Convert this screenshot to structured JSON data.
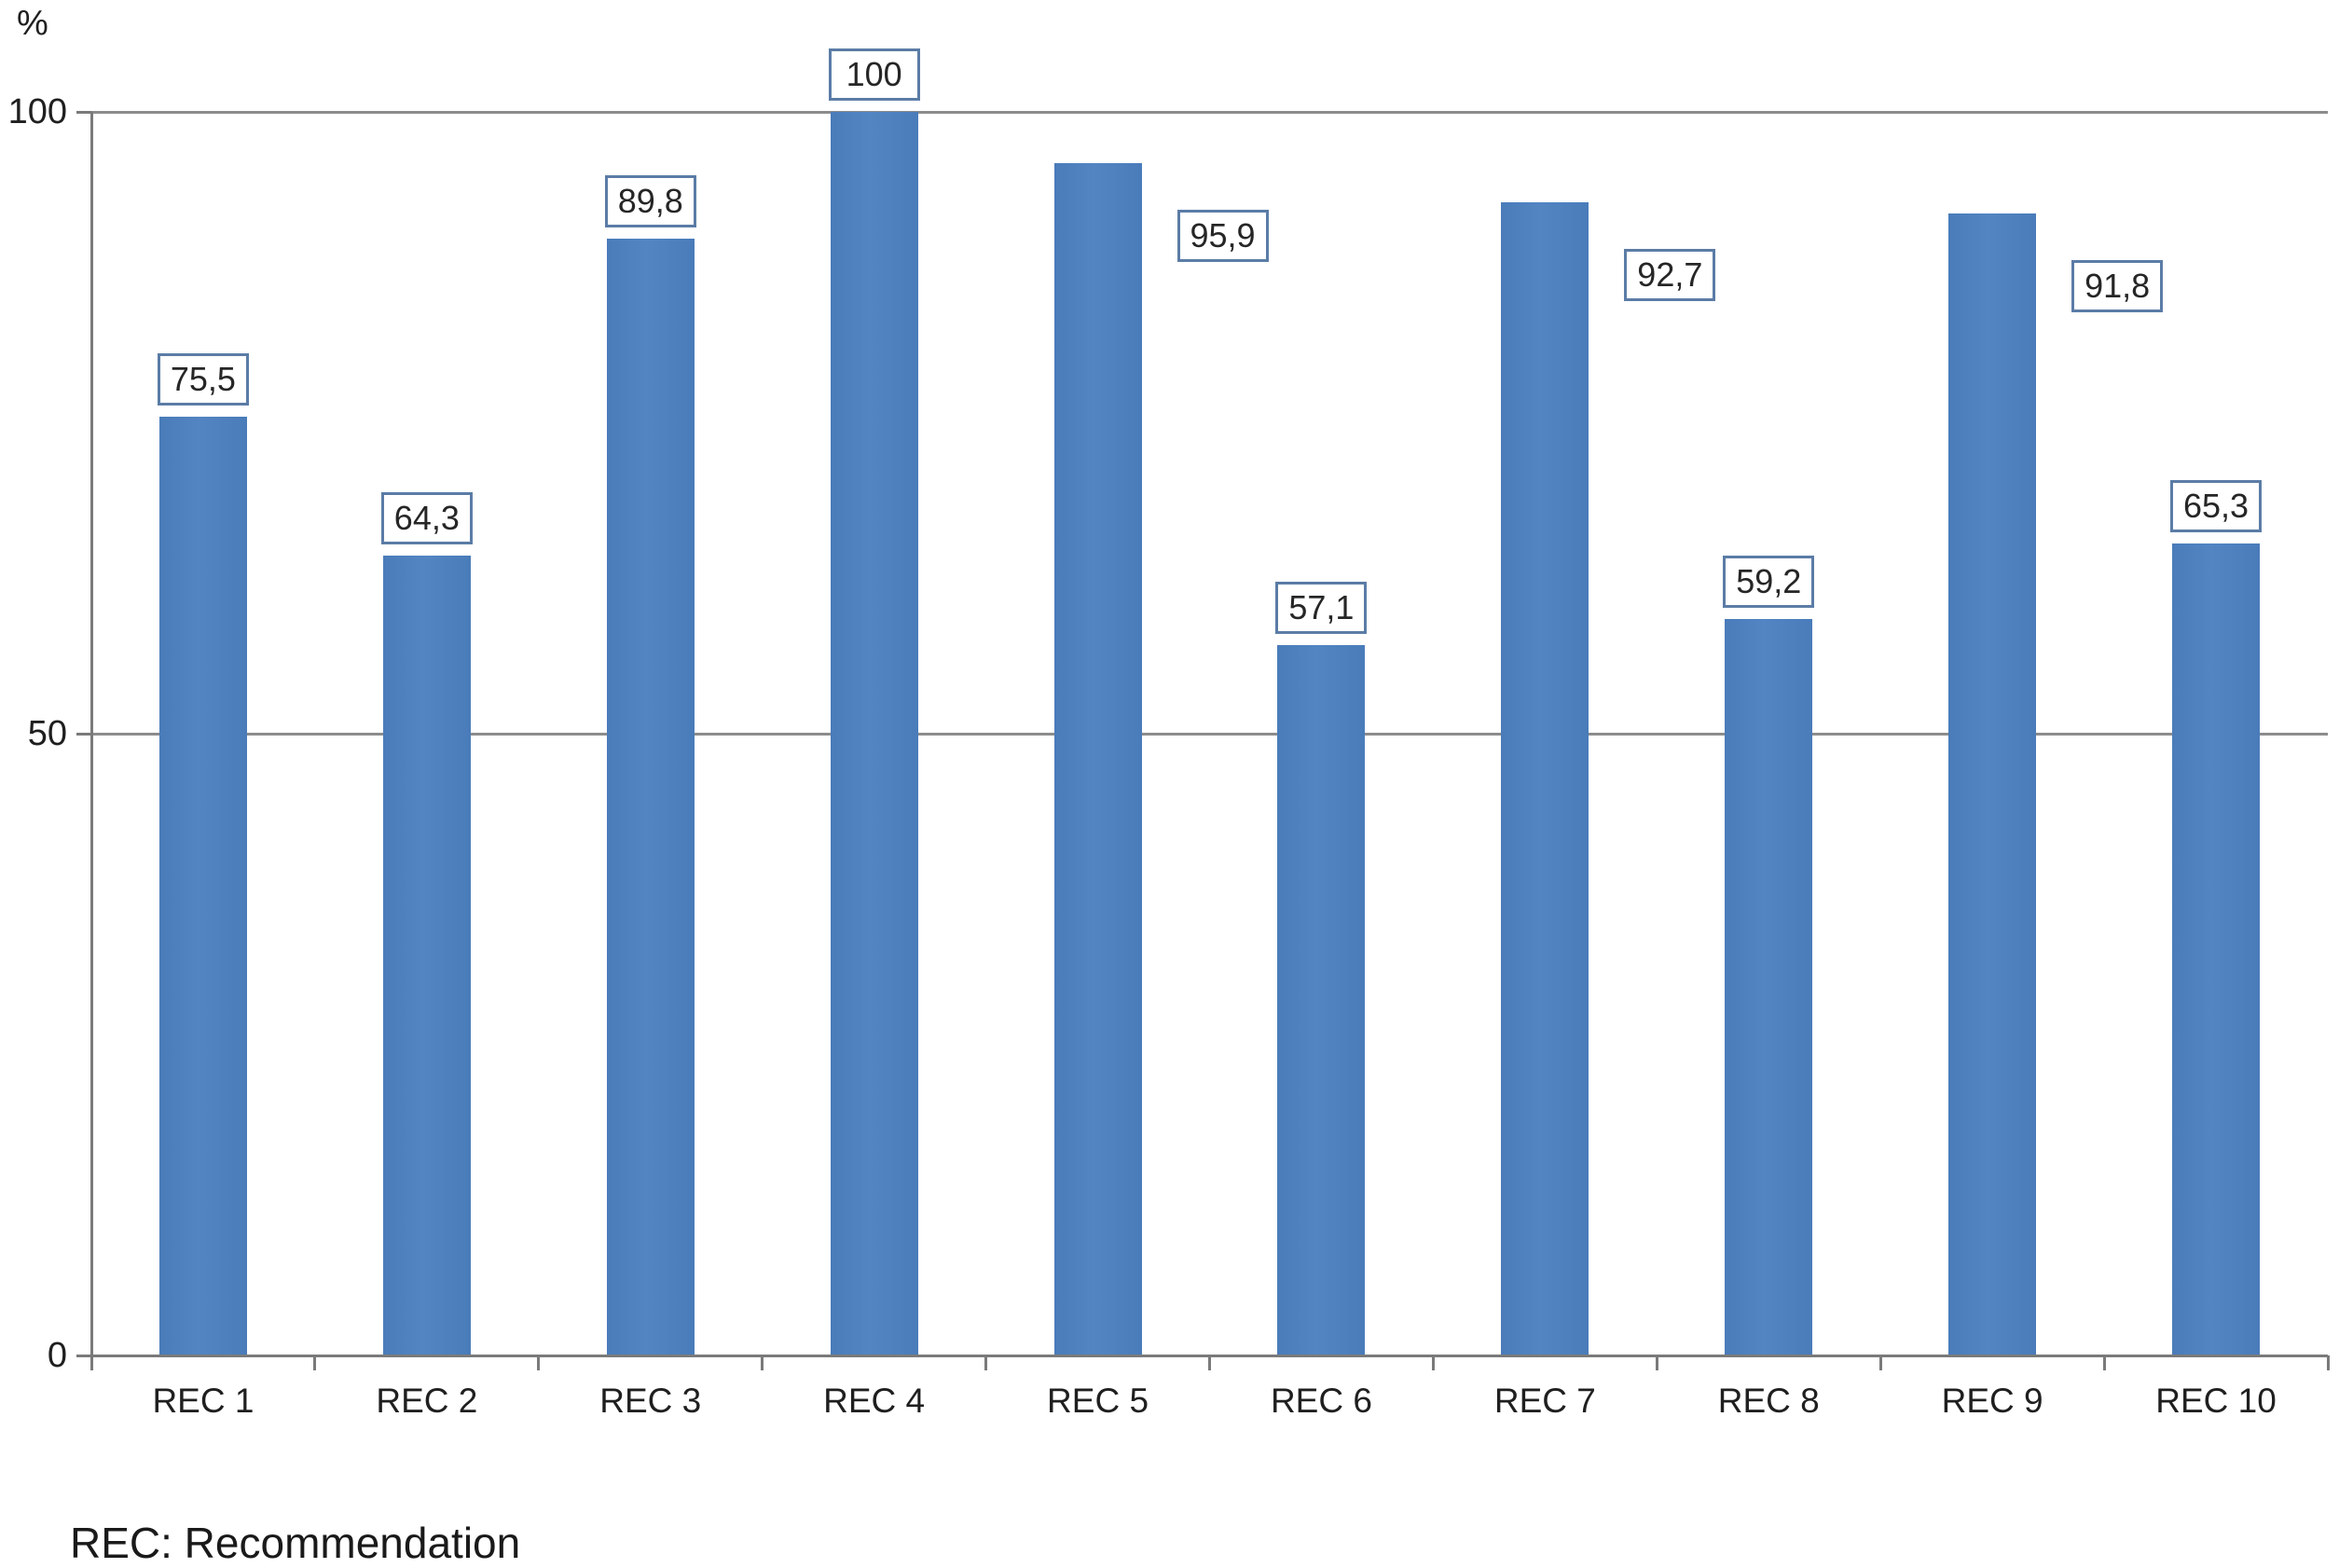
{
  "chart_data": {
    "type": "bar",
    "title": "",
    "ylabel": "%",
    "xlabel": "",
    "categories": [
      "REC 1",
      "REC 2",
      "REC 3",
      "REC 4",
      "REC 5",
      "REC 6",
      "REC 7",
      "REC 8",
      "REC 9",
      "REC 10"
    ],
    "values": [
      75.5,
      64.3,
      89.8,
      100,
      95.9,
      57.1,
      92.7,
      59.2,
      91.8,
      65.3
    ],
    "data_labels": [
      "75,5",
      "64,3",
      "89,8",
      "100",
      "95,9",
      "57,1",
      "92,7",
      "59,2",
      "91,8",
      "65,3"
    ],
    "label_placements": [
      "above",
      "above",
      "above",
      "above",
      "right",
      "above",
      "right",
      "above",
      "right",
      "above"
    ],
    "ylim": [
      0,
      100
    ],
    "yticks": [
      0,
      50,
      100
    ],
    "ytick_labels": [
      "0",
      "50",
      "100"
    ],
    "grid": true,
    "legend": "none",
    "bar_color": "#4f81bd",
    "footnote": "REC: Recommendation"
  }
}
